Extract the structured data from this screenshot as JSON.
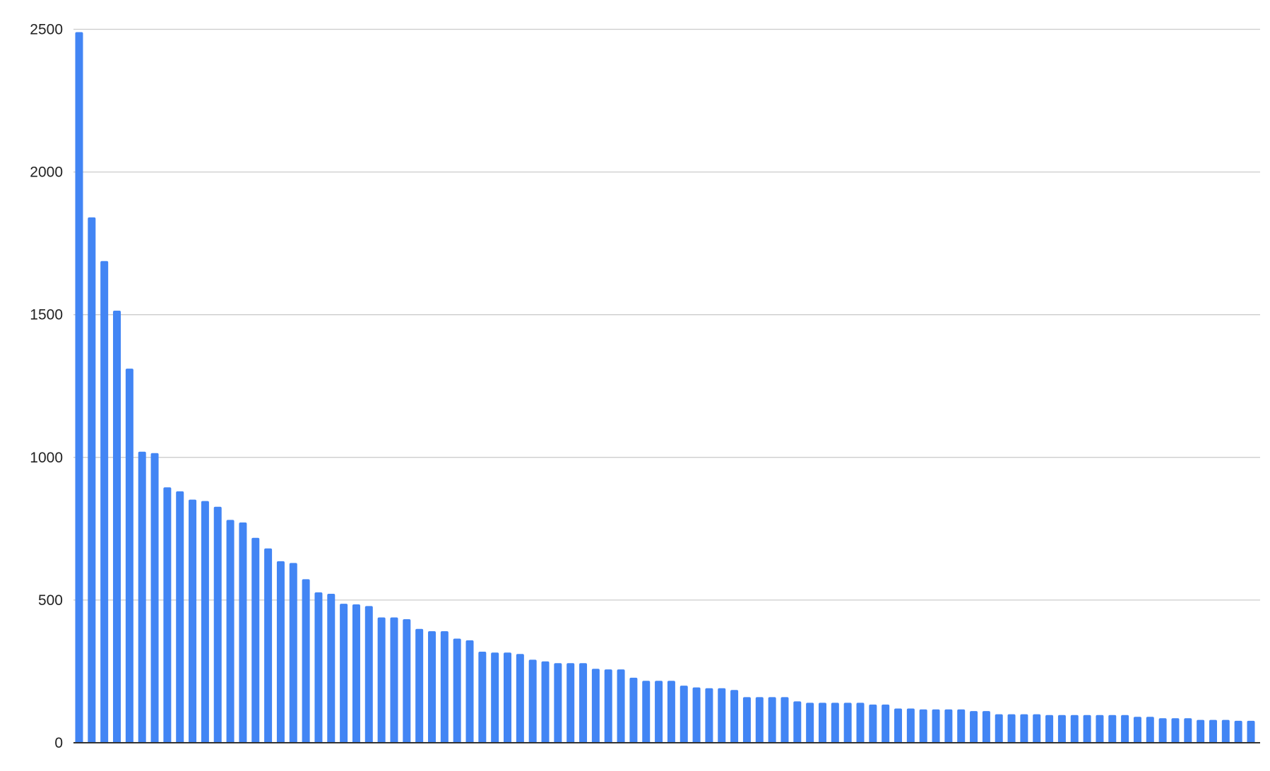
{
  "chart_data": {
    "type": "bar",
    "title": "",
    "xlabel": "",
    "ylabel": "",
    "ylim": [
      0,
      2500
    ],
    "yticks": [
      0,
      500,
      1000,
      1500,
      2000,
      2500
    ],
    "ytick_labels": [
      "0",
      "500",
      "1000",
      "1500",
      "2000",
      "2500"
    ],
    "grid": true,
    "legend": "none",
    "bar_color": "#4285f4",
    "values": [
      2490,
      1841,
      1688,
      1514,
      1311,
      1020,
      1015,
      895,
      881,
      852,
      847,
      827,
      781,
      772,
      718,
      681,
      636,
      630,
      573,
      527,
      522,
      487,
      485,
      479,
      439,
      439,
      433,
      399,
      391,
      391,
      365,
      359,
      319,
      316,
      316,
      311,
      291,
      285,
      279,
      279,
      279,
      259,
      257,
      257,
      228,
      217,
      217,
      217,
      200,
      194,
      191,
      191,
      185,
      160,
      160,
      160,
      160,
      145,
      140,
      140,
      140,
      140,
      140,
      134,
      134,
      120,
      120,
      117,
      117,
      117,
      117,
      111,
      111,
      100,
      100,
      100,
      100,
      97,
      97,
      97,
      97,
      97,
      97,
      97,
      91,
      91,
      86,
      86,
      86,
      80,
      80,
      80,
      77,
      77
    ]
  }
}
